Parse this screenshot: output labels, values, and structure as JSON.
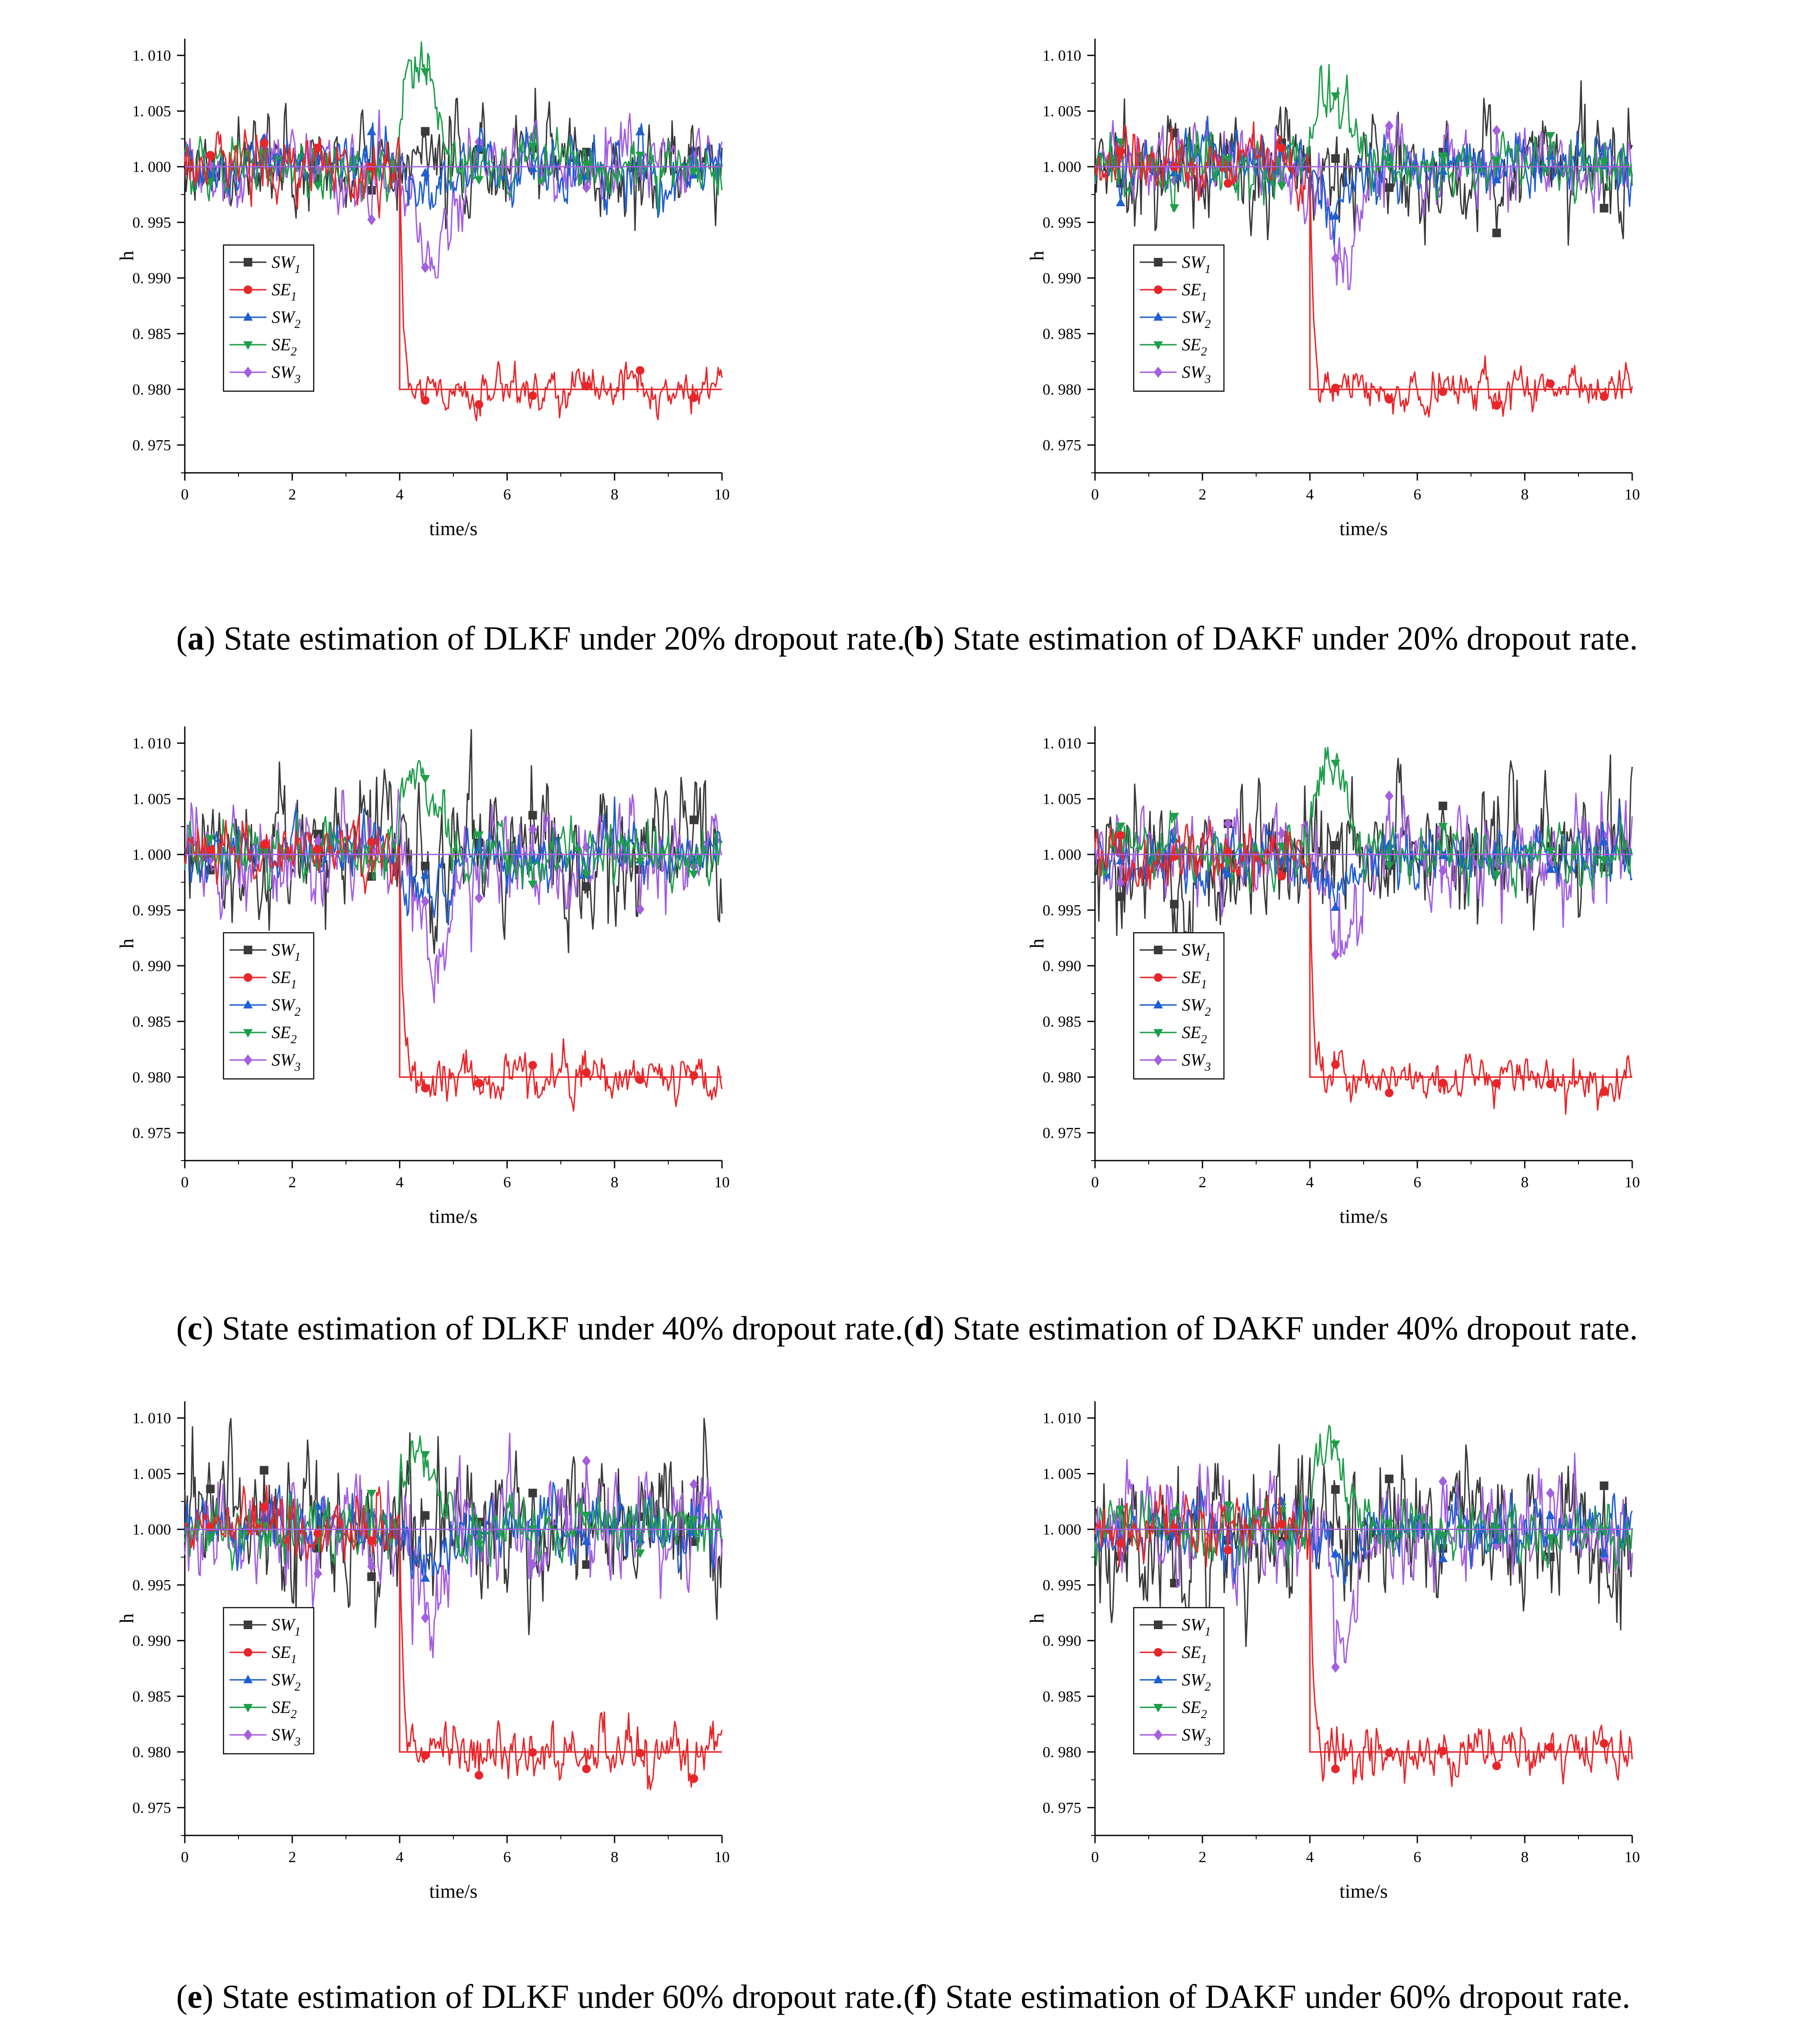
{
  "figure": {
    "panels": [
      {
        "letter": "a",
        "caption": "State estimation of DLKF under 20% dropout rate.",
        "seed": 11,
        "sw1_amp": 0.003,
        "sw3_amp": 0.0024,
        "se2_peak": 0.0102,
        "sw3_dip": -0.009,
        "se1_noise": 0.0013
      },
      {
        "letter": "b",
        "caption": "State estimation of DAKF under 20% dropout rate.",
        "seed": 23,
        "sw1_amp": 0.0035,
        "sw3_amp": 0.0025,
        "se2_peak": 0.0068,
        "sw3_dip": -0.009,
        "se1_noise": 0.0012
      },
      {
        "letter": "c",
        "caption": "State estimation of DLKF under 40% dropout rate.",
        "seed": 37,
        "sw1_amp": 0.0042,
        "sw3_amp": 0.0032,
        "se2_peak": 0.0082,
        "sw3_dip": -0.0095,
        "se1_noise": 0.0015
      },
      {
        "letter": "d",
        "caption": "State estimation of DAKF under 40% dropout rate.",
        "seed": 41,
        "sw1_amp": 0.0042,
        "sw3_amp": 0.003,
        "se2_peak": 0.0072,
        "sw3_dip": -0.008,
        "se1_noise": 0.0013
      },
      {
        "letter": "e",
        "caption": "State estimation of DLKF under 60% dropout rate.",
        "seed": 53,
        "sw1_amp": 0.0045,
        "sw3_amp": 0.0036,
        "se2_peak": 0.0068,
        "sw3_dip": -0.009,
        "se1_noise": 0.0018
      },
      {
        "letter": "f",
        "caption": "State estimation of DAKF under 60% dropout rate.",
        "seed": 67,
        "sw1_amp": 0.0045,
        "sw3_amp": 0.0034,
        "se2_peak": 0.0078,
        "sw3_dip": -0.008,
        "se1_noise": 0.0016
      }
    ]
  },
  "chart_data": {
    "type": "line",
    "xlabel": "time/s",
    "ylabel": "h",
    "xlim": [
      0,
      10
    ],
    "ylim": [
      0.9725,
      1.0115
    ],
    "xticks": [
      "0",
      "2",
      "4",
      "6",
      "8",
      "10"
    ],
    "yticks": [
      "0.975",
      "0.980",
      "0.985",
      "0.990",
      "0.995",
      "1.000",
      "1.005",
      "1.010"
    ],
    "step_time": 4,
    "reference": {
      "before": 1.0,
      "se1_after": 0.98
    },
    "legend": [
      {
        "base": "SW",
        "sub": "1",
        "color": "#3a3a3a",
        "marker": "square"
      },
      {
        "base": "SE",
        "sub": "1",
        "color": "#e8262a",
        "marker": "circle"
      },
      {
        "base": "SW",
        "sub": "2",
        "color": "#1f5fd1",
        "marker": "triangle-up"
      },
      {
        "base": "SE",
        "sub": "2",
        "color": "#1f9e4a",
        "marker": "triangle-down"
      },
      {
        "base": "SW",
        "sub": "3",
        "color": "#a35fe0",
        "marker": "diamond"
      }
    ]
  }
}
